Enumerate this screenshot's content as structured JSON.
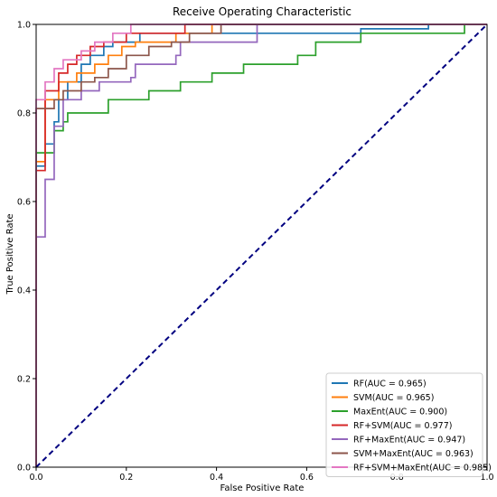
{
  "chart_data": {
    "type": "line",
    "title": "Receive Operating Characteristic",
    "xlabel": "False Positive Rate",
    "ylabel": "True Positive Rate",
    "xlim": [
      0.0,
      1.0
    ],
    "ylim": [
      0.0,
      1.0
    ],
    "xticks": [
      "0.0",
      "0.2",
      "0.4",
      "0.6",
      "0.8",
      "1.0"
    ],
    "yticks": [
      "0.0",
      "0.2",
      "0.4",
      "0.6",
      "0.8",
      "1.0"
    ],
    "grid": false,
    "legend_position": "lower-right",
    "diagonal": {
      "x": [
        0,
        1
      ],
      "y": [
        0,
        1
      ],
      "color": "#000080"
    },
    "series": [
      {
        "name": "RF(AUC = 0.965)",
        "color": "#1f77b4",
        "x": [
          0,
          0,
          0.02,
          0.04,
          0.05,
          0.07,
          0.1,
          0.12,
          0.15,
          0.17,
          0.23,
          0.63,
          0.72,
          0.87,
          1.0
        ],
        "y": [
          0,
          0.68,
          0.73,
          0.78,
          0.83,
          0.87,
          0.91,
          0.93,
          0.95,
          0.96,
          0.98,
          0.98,
          0.99,
          1.0,
          1.0
        ]
      },
      {
        "name": "SVM(AUC = 0.965)",
        "color": "#ff7f0e",
        "x": [
          0,
          0,
          0.02,
          0.05,
          0.09,
          0.13,
          0.16,
          0.19,
          0.22,
          0.31,
          0.39,
          1.0
        ],
        "y": [
          0,
          0.69,
          0.83,
          0.87,
          0.89,
          0.91,
          0.93,
          0.95,
          0.96,
          0.98,
          1.0,
          1.0
        ]
      },
      {
        "name": "MaxEnt(AUC = 0.900)",
        "color": "#2ca02c",
        "x": [
          0,
          0,
          0.04,
          0.06,
          0.07,
          0.16,
          0.25,
          0.32,
          0.39,
          0.46,
          0.58,
          0.62,
          0.72,
          0.95,
          0.95,
          1.0
        ],
        "y": [
          0,
          0.71,
          0.76,
          0.78,
          0.8,
          0.83,
          0.85,
          0.87,
          0.89,
          0.91,
          0.93,
          0.96,
          0.98,
          0.98,
          1.0,
          1.0
        ]
      },
      {
        "name": "RF+SVM(AUC = 0.977)",
        "color": "#d62728",
        "x": [
          0,
          0,
          0.02,
          0.05,
          0.07,
          0.09,
          0.12,
          0.15,
          0.2,
          0.26,
          0.33,
          1.0
        ],
        "y": [
          0,
          0.67,
          0.85,
          0.89,
          0.91,
          0.93,
          0.95,
          0.96,
          0.98,
          0.98,
          1.0,
          1.0
        ]
      },
      {
        "name": "RF+MaxEnt(AUC = 0.947)",
        "color": "#9467bd",
        "x": [
          0,
          0,
          0.02,
          0.04,
          0.06,
          0.1,
          0.14,
          0.21,
          0.22,
          0.31,
          0.32,
          0.49,
          1.0
        ],
        "y": [
          0,
          0.52,
          0.65,
          0.77,
          0.83,
          0.85,
          0.87,
          0.88,
          0.91,
          0.93,
          0.96,
          1.0,
          1.0
        ]
      },
      {
        "name": "SVM+MaxEnt(AUC = 0.963)",
        "color": "#8c564b",
        "x": [
          0,
          0,
          0.04,
          0.06,
          0.1,
          0.13,
          0.16,
          0.2,
          0.25,
          0.3,
          0.34,
          0.41,
          1.0
        ],
        "y": [
          0,
          0.81,
          0.83,
          0.85,
          0.87,
          0.88,
          0.9,
          0.93,
          0.95,
          0.96,
          0.98,
          1.0,
          1.0
        ]
      },
      {
        "name": "RF+SVM+MaxEnt(AUC = 0.985)",
        "color": "#e377c2",
        "x": [
          0,
          0,
          0.02,
          0.04,
          0.06,
          0.1,
          0.13,
          0.17,
          0.21,
          1.0
        ],
        "y": [
          0,
          0.83,
          0.87,
          0.9,
          0.92,
          0.94,
          0.96,
          0.98,
          1.0,
          1.0
        ]
      }
    ]
  }
}
